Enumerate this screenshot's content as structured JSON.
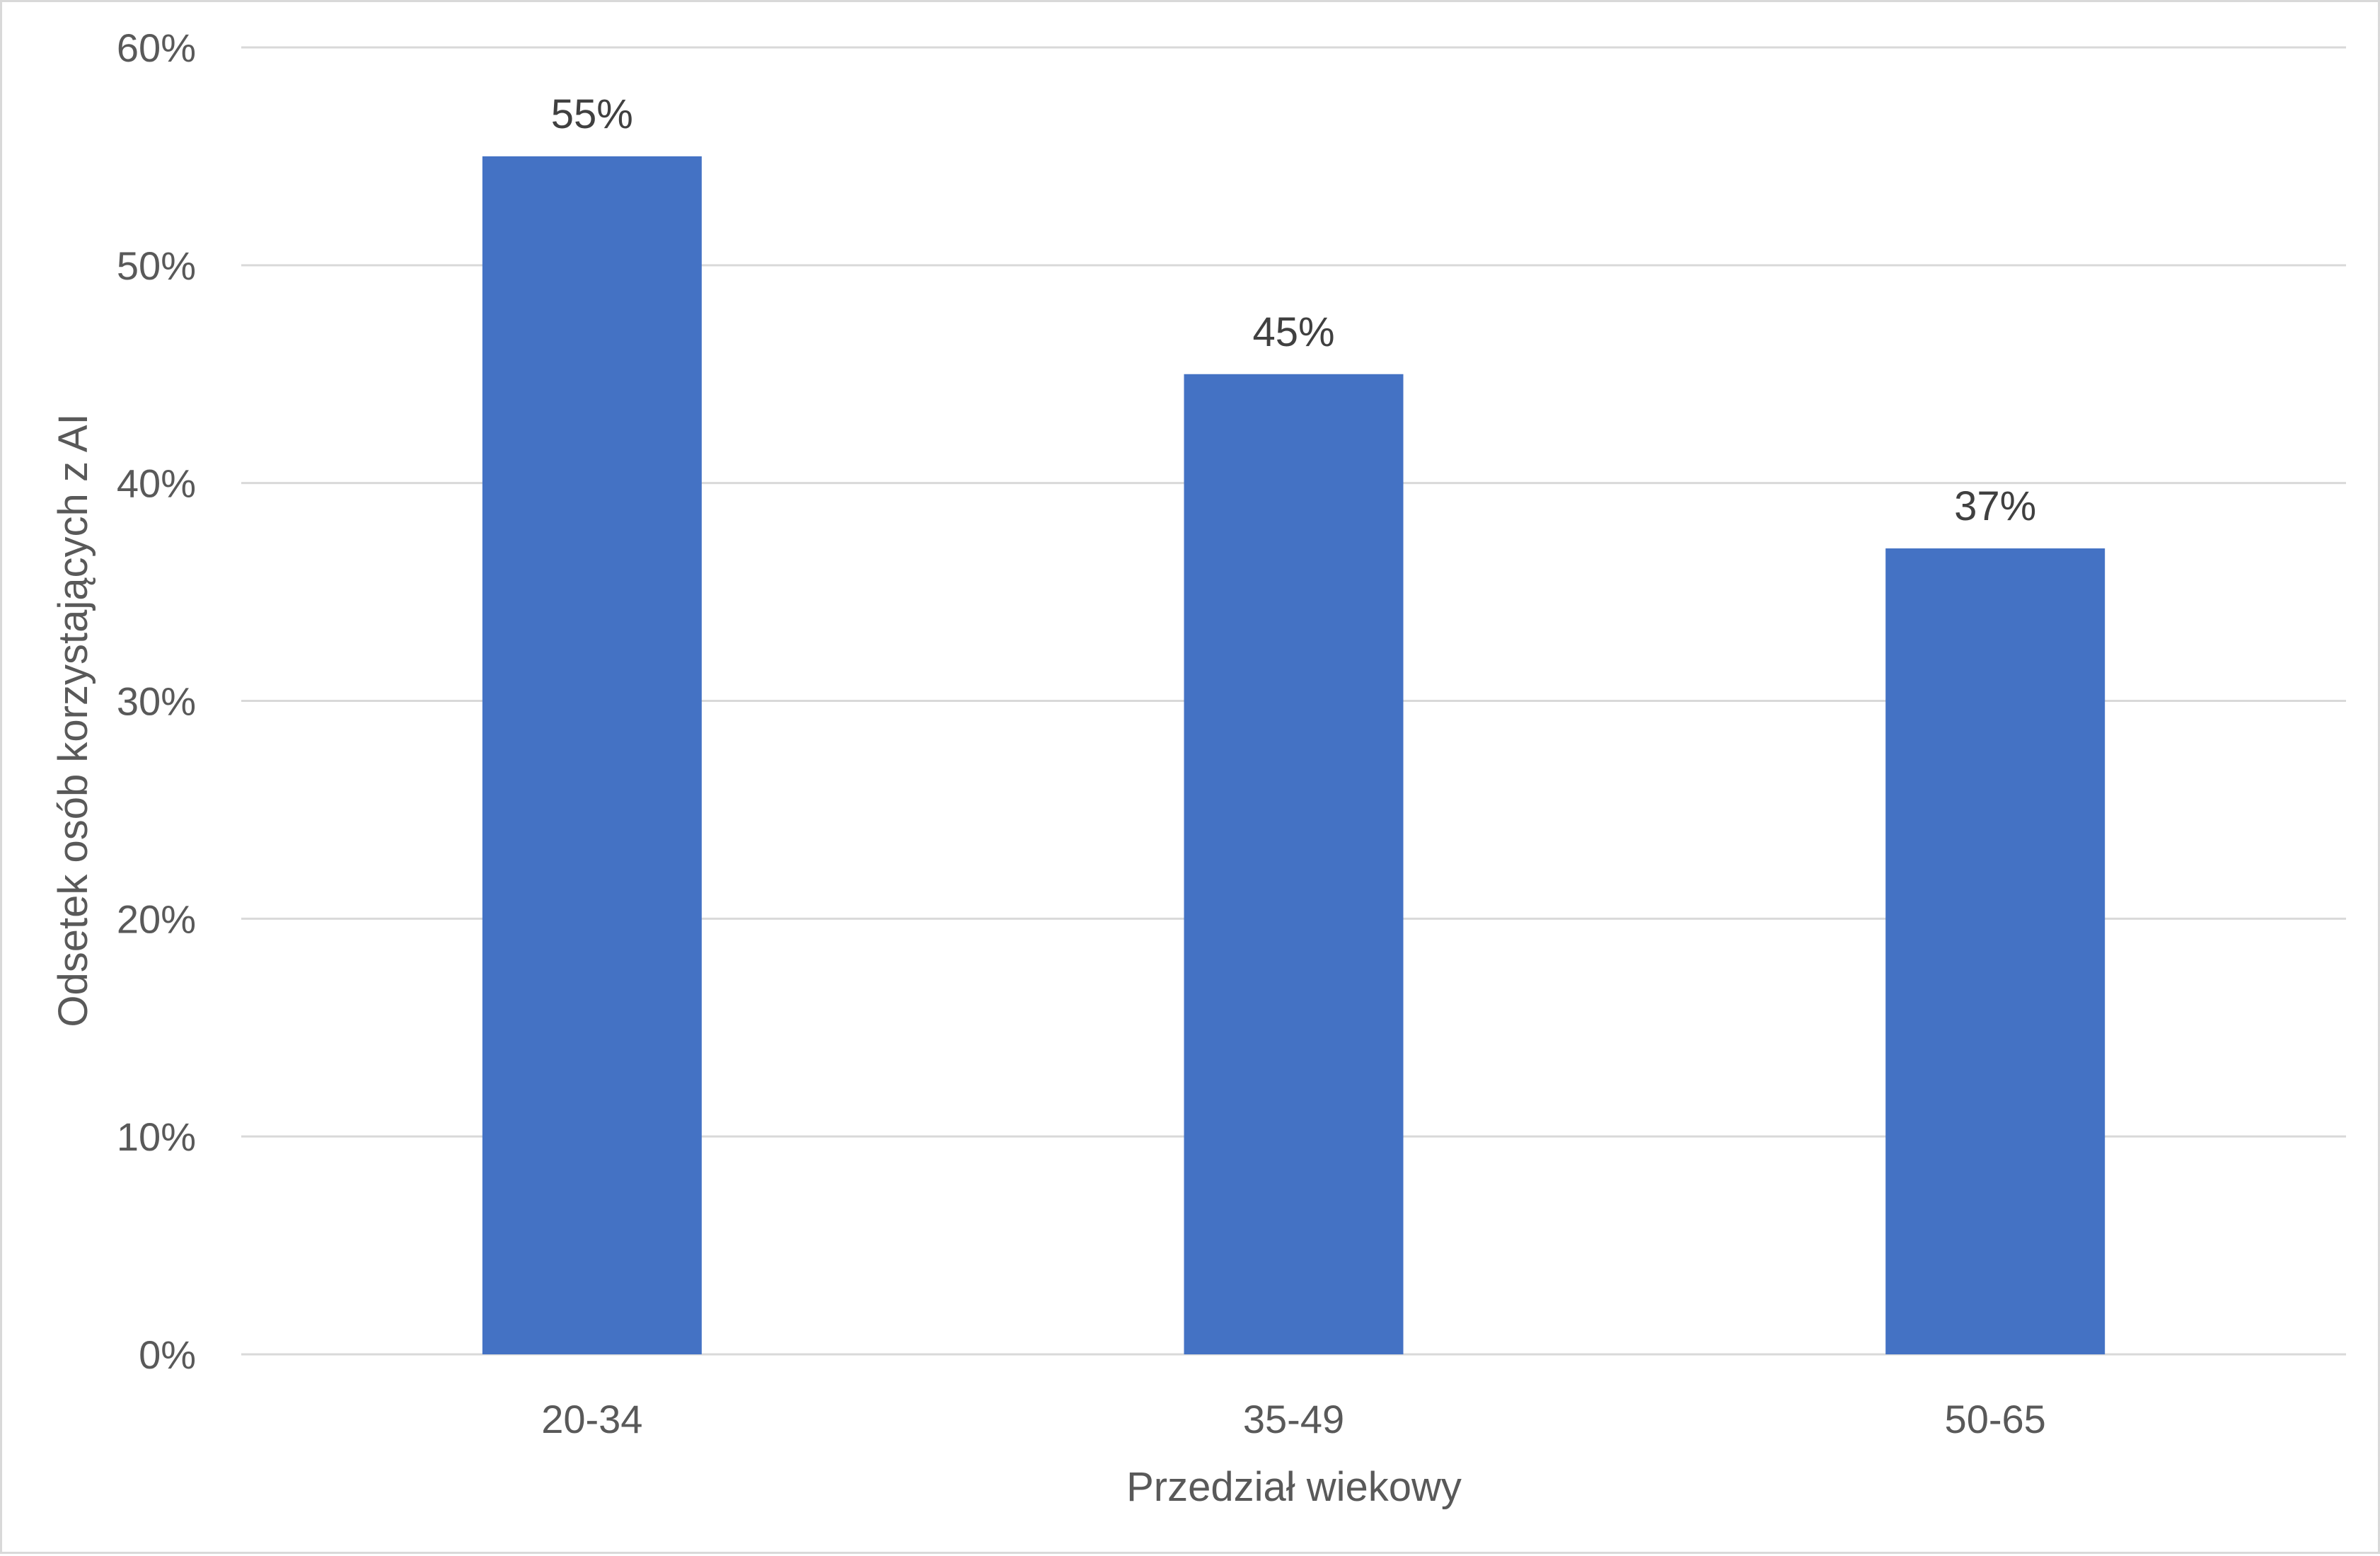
{
  "chart_data": {
    "type": "bar",
    "title": "",
    "xlabel": "Przedział wiekowy",
    "ylabel": "Odsetek osób korzystających z AI",
    "categories": [
      "20-34",
      "35-49",
      "50-65"
    ],
    "values": [
      55,
      45,
      37
    ],
    "data_labels": [
      "55%",
      "45%",
      "37%"
    ],
    "ylim": [
      0,
      60
    ],
    "yticks": [
      0,
      10,
      20,
      30,
      40,
      50,
      60
    ],
    "ytick_labels": [
      "0%",
      "10%",
      "20%",
      "30%",
      "40%",
      "50%",
      "60%"
    ],
    "grid": true,
    "legend": "none"
  },
  "colors": {
    "bar": "#4472c4",
    "grid": "#d9d9d9",
    "tick_text": "#595959",
    "label_text": "#404040"
  }
}
